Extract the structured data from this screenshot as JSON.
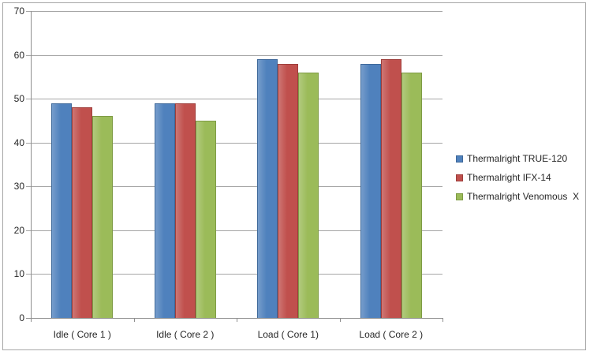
{
  "chart_data": {
    "type": "bar",
    "title": "",
    "xlabel": "",
    "ylabel": "",
    "categories": [
      "Idle ( Core 1 )",
      "Idle ( Core 2 )",
      "Load ( Core 1)",
      "Load ( Core 2 )"
    ],
    "series": [
      {
        "name": "Thermalright TRUE-120",
        "color": "#4f81bd",
        "border_color": "#3e689a",
        "values": [
          49,
          49,
          59,
          58
        ]
      },
      {
        "name": "Thermalright IFX-14",
        "color": "#c0504d",
        "border_color": "#9e3e3b",
        "values": [
          48,
          49,
          58,
          59
        ]
      },
      {
        "name": "Thermalright Venomous  X",
        "color": "#9bbb59",
        "border_color": "#7e9b44",
        "values": [
          46,
          45,
          56,
          56
        ]
      }
    ],
    "ylim": [
      0,
      70
    ],
    "ytick_step": 10,
    "yticks": [
      "0",
      "10",
      "20",
      "30",
      "40",
      "50",
      "60",
      "70"
    ],
    "grid": true,
    "legend_position": "right",
    "colors": {
      "background": "#ffffff",
      "chart_border": "#a6a6a6",
      "gridline": "#a6a6a6",
      "axis": "#8f8f8f",
      "text": "#262626"
    }
  }
}
